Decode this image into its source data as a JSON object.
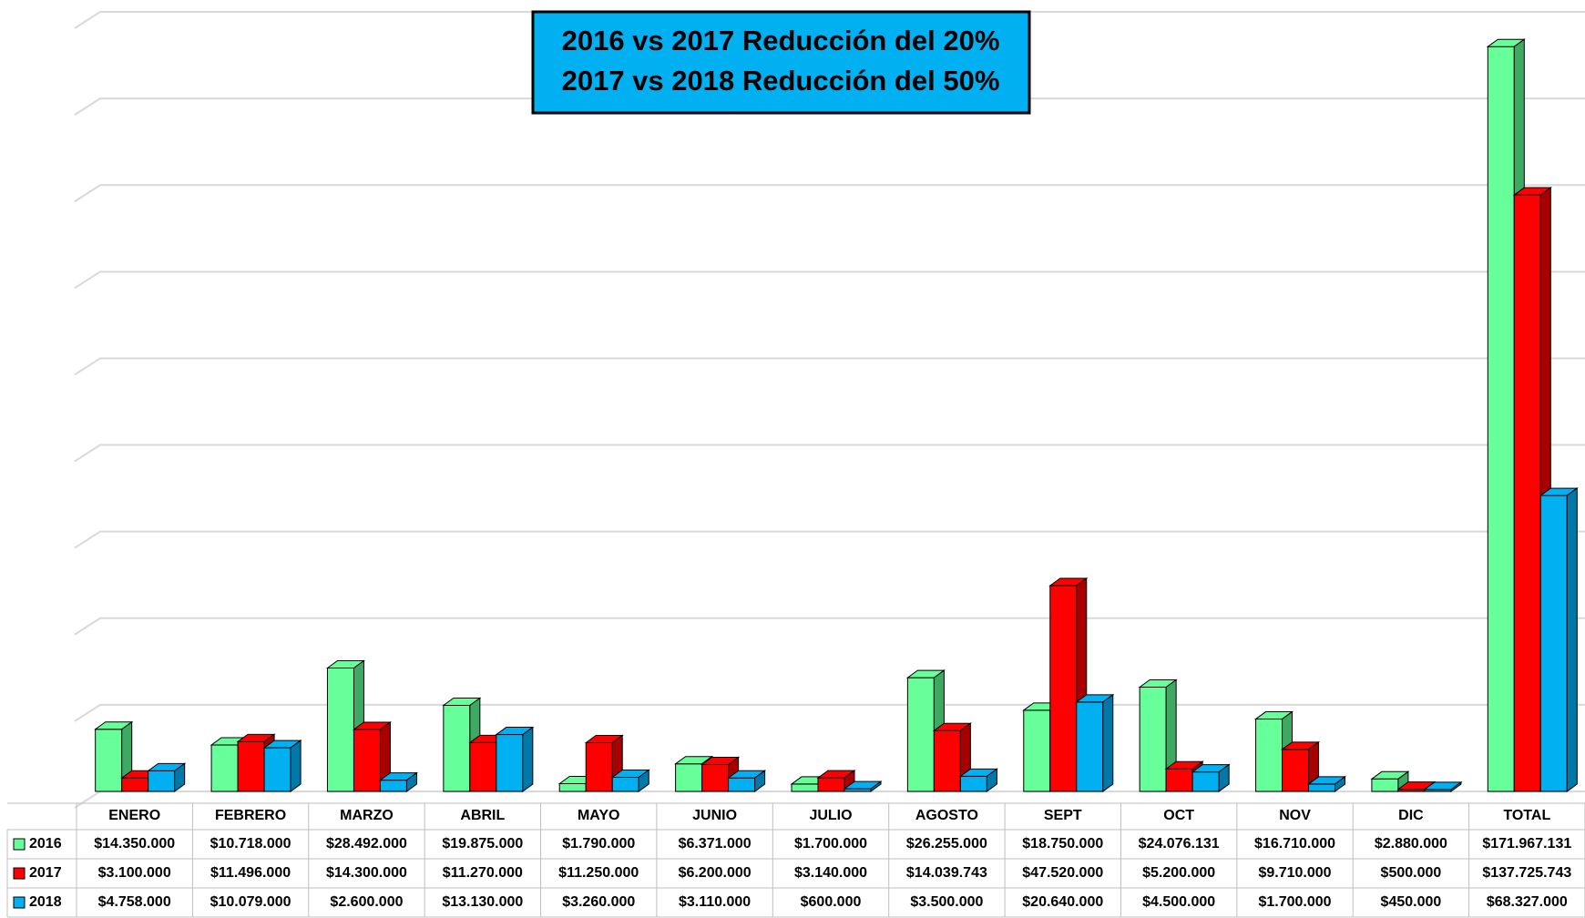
{
  "chart_data": {
    "type": "bar3d",
    "annotation": [
      "2016 vs 2017 Reducción del 20%",
      "2017 vs 2018 Reducción del 50%"
    ],
    "categories": [
      "ENERO",
      "FEBRERO",
      "MARZO",
      "ABRIL",
      "MAYO",
      "JUNIO",
      "JULIO",
      "AGOSTO",
      "SEPT",
      "OCT",
      "NOV",
      "DIC",
      "TOTAL"
    ],
    "series": [
      {
        "name": "2016",
        "color": "#66ff99",
        "side": "#3fa863",
        "values": [
          14350000,
          10718000,
          28492000,
          19875000,
          1790000,
          6371000,
          1700000,
          26255000,
          18750000,
          24076131,
          16710000,
          2880000,
          171967131
        ],
        "value_labels": [
          "$14.350.000",
          "$10.718.000",
          "$28.492.000",
          "$19.875.000",
          "$1.790.000",
          "$6.371.000",
          "$1.700.000",
          "$26.255.000",
          "$18.750.000",
          "$24.076.131",
          "$16.710.000",
          "$2.880.000",
          "$171.967.131"
        ]
      },
      {
        "name": "2017",
        "color": "#ff0000",
        "side": "#a80000",
        "values": [
          3100000,
          11496000,
          14300000,
          11270000,
          11250000,
          6200000,
          3140000,
          14039743,
          47520000,
          5200000,
          9710000,
          500000,
          137725743
        ],
        "value_labels": [
          "$3.100.000",
          "$11.496.000",
          "$14.300.000",
          "$11.270.000",
          "$11.250.000",
          "$6.200.000",
          "$3.140.000",
          "$14.039.743",
          "$47.520.000",
          "$5.200.000",
          "$9.710.000",
          "$500.000",
          "$137.725.743"
        ]
      },
      {
        "name": "2018",
        "color": "#00b0f0",
        "side": "#0078a8",
        "values": [
          4758000,
          10079000,
          2600000,
          13130000,
          3260000,
          3110000,
          600000,
          3500000,
          20640000,
          4500000,
          1700000,
          450000,
          68327000
        ],
        "value_labels": [
          "$4.758.000",
          "$10.079.000",
          "$2.600.000",
          "$13.130.000",
          "$3.260.000",
          "$3.110.000",
          "$600.000",
          "$3.500.000",
          "$20.640.000",
          "$4.500.000",
          "$1.700.000",
          "$450.000",
          "$68.327.000"
        ]
      }
    ],
    "ylim": [
      0,
      180000000
    ],
    "yticks": [
      0,
      20000000,
      40000000,
      60000000,
      80000000,
      100000000,
      120000000,
      140000000,
      160000000,
      180000000
    ],
    "grid": true
  }
}
